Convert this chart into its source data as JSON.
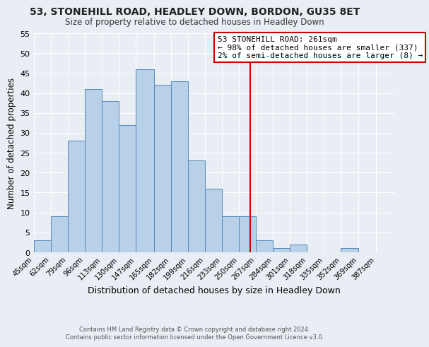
{
  "title": "53, STONEHILL ROAD, HEADLEY DOWN, BORDON, GU35 8ET",
  "subtitle": "Size of property relative to detached houses in Headley Down",
  "xlabel": "Distribution of detached houses by size in Headley Down",
  "ylabel": "Number of detached properties",
  "bin_labels": [
    "45sqm",
    "62sqm",
    "79sqm",
    "96sqm",
    "113sqm",
    "130sqm",
    "147sqm",
    "165sqm",
    "182sqm",
    "199sqm",
    "216sqm",
    "233sqm",
    "250sqm",
    "267sqm",
    "284sqm",
    "301sqm",
    "318sqm",
    "335sqm",
    "352sqm",
    "369sqm",
    "387sqm"
  ],
  "bin_edges": [
    45,
    62,
    79,
    96,
    113,
    130,
    147,
    165,
    182,
    199,
    216,
    233,
    250,
    267,
    284,
    301,
    318,
    335,
    352,
    369,
    387
  ],
  "bar_heights": [
    3,
    9,
    28,
    41,
    38,
    32,
    46,
    42,
    43,
    23,
    16,
    9,
    9,
    3,
    1,
    2,
    0,
    0,
    1,
    0,
    0
  ],
  "bar_color": "#b8d0e8",
  "bar_edge_color": "#5588bb",
  "marker_value": 261,
  "marker_color": "#cc0000",
  "annotation_title": "53 STONEHILL ROAD: 261sqm",
  "annotation_line1": "← 98% of detached houses are smaller (337)",
  "annotation_line2": "2% of semi-detached houses are larger (8) →",
  "annotation_box_color": "#ffffff",
  "annotation_box_edge": "#cc0000",
  "ylim": [
    0,
    55
  ],
  "yticks": [
    0,
    5,
    10,
    15,
    20,
    25,
    30,
    35,
    40,
    45,
    50,
    55
  ],
  "background_color": "#e8eef4",
  "grid_color": "#ffffff",
  "footer1": "Contains HM Land Registry data © Crown copyright and database right 2024.",
  "footer2": "Contains public sector information licensed under the Open Government Licence v3.0."
}
